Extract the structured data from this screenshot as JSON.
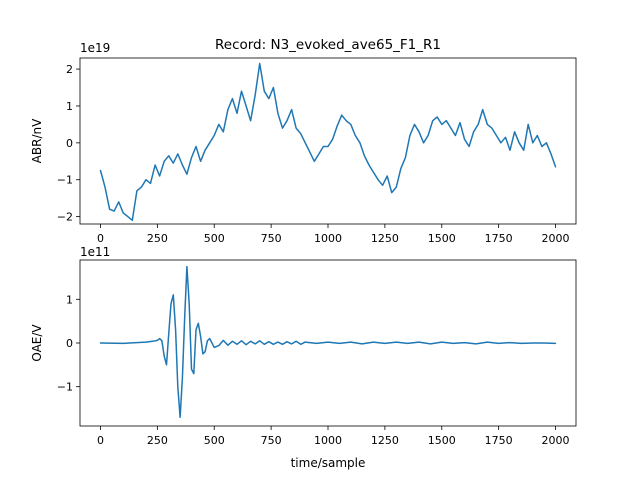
{
  "chart_data": {
    "title": "Record: N3_evoked_ave65_F1_R1",
    "xlabel": "time/sample",
    "grid": false,
    "panels": [
      {
        "type": "line",
        "ylabel": "ABR/nV",
        "scale_label": "1e19",
        "xlim": [
          -90,
          2090
        ],
        "ylim": [
          -2.2,
          2.3
        ],
        "xticks": [
          0,
          250,
          500,
          750,
          1000,
          1250,
          1500,
          1750,
          2000
        ],
        "yticks": [
          -2,
          -1,
          0,
          1,
          2
        ],
        "color": "#1f77b4",
        "series": [
          {
            "x": [
              0,
              20,
              40,
              60,
              80,
              100,
              120,
              140,
              160,
              180,
              200,
              220,
              240,
              260,
              280,
              300,
              320,
              340,
              360,
              380,
              400,
              420,
              440,
              460,
              480,
              500,
              520,
              540,
              560,
              580,
              600,
              620,
              640,
              660,
              680,
              700,
              720,
              740,
              760,
              780,
              800,
              820,
              840,
              860,
              880,
              900,
              920,
              940,
              960,
              980,
              1000,
              1020,
              1040,
              1060,
              1080,
              1100,
              1120,
              1140,
              1160,
              1180,
              1200,
              1220,
              1240,
              1260,
              1280,
              1300,
              1320,
              1340,
              1360,
              1380,
              1400,
              1420,
              1440,
              1460,
              1480,
              1500,
              1520,
              1540,
              1560,
              1580,
              1600,
              1620,
              1640,
              1660,
              1680,
              1700,
              1720,
              1740,
              1760,
              1780,
              1800,
              1820,
              1840,
              1860,
              1880,
              1900,
              1920,
              1940,
              1960,
              1980,
              2000
            ],
            "y": [
              -0.75,
              -1.2,
              -1.8,
              -1.85,
              -1.6,
              -1.9,
              -2.0,
              -2.1,
              -1.3,
              -1.2,
              -1.0,
              -1.1,
              -0.6,
              -0.9,
              -0.5,
              -0.35,
              -0.55,
              -0.3,
              -0.6,
              -0.85,
              -0.4,
              -0.1,
              -0.5,
              -0.2,
              0.0,
              0.2,
              0.5,
              0.3,
              0.9,
              1.2,
              0.8,
              1.4,
              1.0,
              0.6,
              1.3,
              2.15,
              1.4,
              1.2,
              1.5,
              0.8,
              0.4,
              0.6,
              0.9,
              0.4,
              0.25,
              0.0,
              -0.25,
              -0.5,
              -0.3,
              -0.1,
              -0.1,
              0.1,
              0.45,
              0.75,
              0.6,
              0.5,
              0.2,
              0.0,
              -0.35,
              -0.6,
              -0.8,
              -1.0,
              -1.15,
              -0.9,
              -1.35,
              -1.2,
              -0.7,
              -0.4,
              0.2,
              0.5,
              0.3,
              0.0,
              0.2,
              0.6,
              0.7,
              0.5,
              0.6,
              0.4,
              0.2,
              0.55,
              0.1,
              -0.1,
              0.3,
              0.5,
              0.9,
              0.5,
              0.4,
              0.2,
              0.0,
              0.15,
              -0.2,
              0.3,
              0.0,
              -0.2,
              0.5,
              0.0,
              0.2,
              -0.1,
              0.0,
              -0.3,
              -0.65
            ]
          }
        ]
      },
      {
        "type": "line",
        "ylabel": "OAE/V",
        "scale_label": "1e11",
        "xlim": [
          -90,
          2090
        ],
        "ylim": [
          -1.9,
          1.9
        ],
        "xticks": [
          0,
          250,
          500,
          750,
          1000,
          1250,
          1500,
          1750,
          2000
        ],
        "yticks": [
          -1,
          0,
          1
        ],
        "color": "#1f77b4",
        "series": [
          {
            "x": [
              0,
              100,
              200,
              230,
              250,
              260,
              270,
              280,
              290,
              300,
              310,
              320,
              330,
              340,
              350,
              360,
              370,
              380,
              390,
              400,
              410,
              420,
              430,
              440,
              450,
              460,
              470,
              480,
              490,
              500,
              520,
              540,
              560,
              580,
              600,
              620,
              640,
              660,
              680,
              700,
              720,
              740,
              760,
              780,
              800,
              820,
              840,
              860,
              880,
              900,
              950,
              1000,
              1050,
              1100,
              1150,
              1200,
              1250,
              1300,
              1350,
              1400,
              1450,
              1500,
              1550,
              1600,
              1650,
              1700,
              1750,
              1800,
              1850,
              1900,
              1950,
              2000
            ],
            "y": [
              0.0,
              -0.01,
              0.02,
              0.04,
              0.06,
              0.1,
              0.05,
              -0.3,
              -0.5,
              0.2,
              0.9,
              1.1,
              0.3,
              -1.0,
              -1.7,
              -0.8,
              0.6,
              1.75,
              0.9,
              -0.6,
              -0.7,
              0.3,
              0.45,
              0.15,
              -0.25,
              -0.2,
              0.05,
              0.1,
              0.0,
              -0.1,
              -0.06,
              0.06,
              -0.05,
              0.04,
              -0.03,
              0.05,
              -0.04,
              0.04,
              -0.02,
              0.05,
              -0.03,
              0.03,
              -0.03,
              0.02,
              -0.03,
              0.03,
              -0.02,
              0.04,
              -0.03,
              0.02,
              -0.01,
              0.02,
              -0.01,
              0.02,
              -0.02,
              0.02,
              -0.01,
              0.02,
              -0.01,
              0.02,
              -0.02,
              0.02,
              -0.01,
              0.01,
              -0.02,
              0.02,
              -0.01,
              0.01,
              -0.01,
              0.0,
              0.0,
              -0.01
            ]
          }
        ]
      }
    ]
  }
}
